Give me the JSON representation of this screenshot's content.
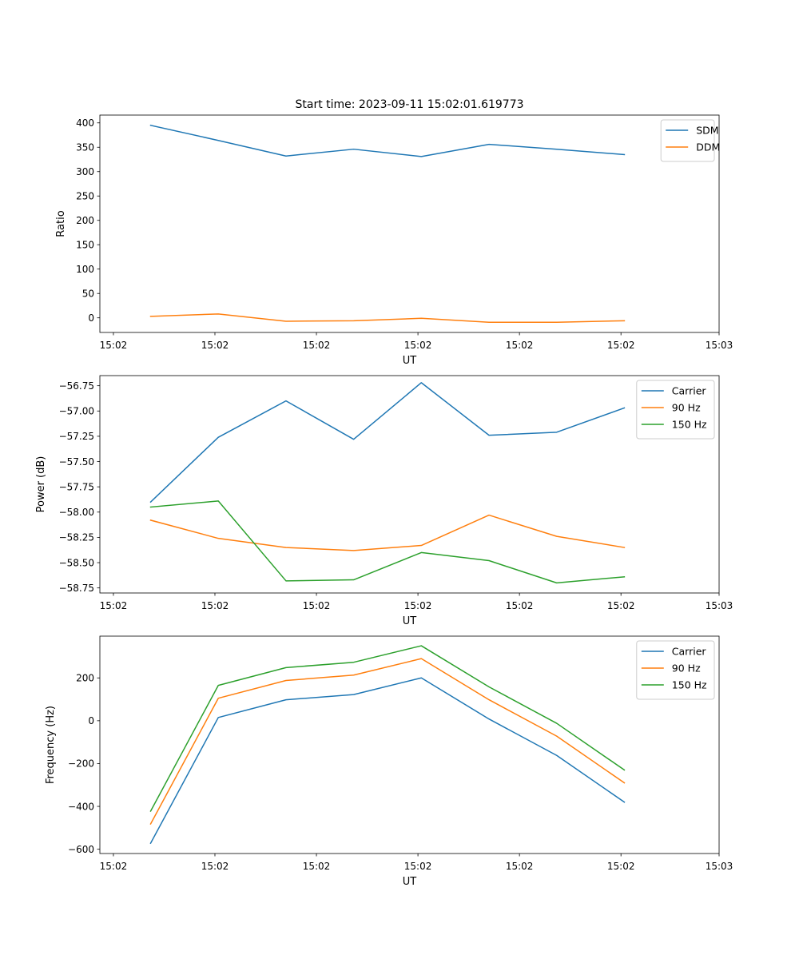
{
  "figure": {
    "title": "Start time: 2023-09-11 15:02:01.619773"
  },
  "colors": {
    "series1": "#1f77b4",
    "series2": "#ff7f0e",
    "series3": "#2ca02c",
    "axes": "#000000",
    "background": "#ffffff"
  },
  "chart_data": [
    {
      "type": "line",
      "title": "Start time: 2023-09-11 15:02:01.619773",
      "xlabel": "UT",
      "ylabel": "Ratio",
      "x": [
        1,
        2,
        3,
        4,
        5,
        6,
        7,
        8
      ],
      "xlim": [
        0.25,
        9.4
      ],
      "xticks": [
        0.45,
        1.95,
        3.45,
        4.95,
        6.45,
        7.95,
        9.4
      ],
      "xtick_labels": [
        "15:02",
        "15:02",
        "15:02",
        "15:02",
        "15:02",
        "15:02",
        "15:03"
      ],
      "ylim": [
        -30,
        416
      ],
      "yticks": [
        0,
        50,
        100,
        150,
        200,
        250,
        300,
        350,
        400
      ],
      "ytick_labels": [
        "0",
        "50",
        "100",
        "150",
        "200",
        "250",
        "300",
        "350",
        "400"
      ],
      "legend_position": "top-right",
      "series": [
        {
          "name": "SDM",
          "color": "#1f77b4",
          "values": [
            395,
            364,
            332,
            346,
            331,
            356,
            346,
            335
          ]
        },
        {
          "name": "DDM",
          "color": "#ff7f0e",
          "values": [
            3,
            8,
            -7,
            -6,
            -1,
            -9,
            -9,
            -6
          ]
        }
      ]
    },
    {
      "type": "line",
      "title": "",
      "xlabel": "UT",
      "ylabel": "Power (dB)",
      "x": [
        1,
        2,
        3,
        4,
        5,
        6,
        7,
        8
      ],
      "xlim": [
        0.25,
        9.4
      ],
      "xticks": [
        0.45,
        1.95,
        3.45,
        4.95,
        6.45,
        7.95,
        9.4
      ],
      "xtick_labels": [
        "15:02",
        "15:02",
        "15:02",
        "15:02",
        "15:02",
        "15:02",
        "15:03"
      ],
      "ylim": [
        -58.8,
        -56.65
      ],
      "yticks": [
        -58.75,
        -58.5,
        -58.25,
        -58.0,
        -57.75,
        -57.5,
        -57.25,
        -57.0,
        -56.75
      ],
      "ytick_labels": [
        "−58.75",
        "−58.50",
        "−58.25",
        "−58.00",
        "−57.75",
        "−57.50",
        "−57.25",
        "−57.00",
        "−56.75"
      ],
      "legend_position": "top-right",
      "series": [
        {
          "name": "Carrier",
          "color": "#1f77b4",
          "values": [
            -57.9,
            -57.26,
            -56.9,
            -57.28,
            -56.72,
            -57.24,
            -57.21,
            -56.97
          ]
        },
        {
          "name": "90 Hz",
          "color": "#ff7f0e",
          "values": [
            -58.08,
            -58.26,
            -58.35,
            -58.38,
            -58.33,
            -58.03,
            -58.24,
            -58.35
          ]
        },
        {
          "name": "150 Hz",
          "color": "#2ca02c",
          "values": [
            -57.95,
            -57.89,
            -58.68,
            -58.67,
            -58.4,
            -58.48,
            -58.7,
            -58.64
          ]
        }
      ]
    },
    {
      "type": "line",
      "title": "",
      "xlabel": "UT",
      "ylabel": "Frequency (Hz)",
      "x": [
        1,
        2,
        3,
        4,
        5,
        6,
        7,
        8
      ],
      "xlim": [
        0.25,
        9.4
      ],
      "xticks": [
        0.45,
        1.95,
        3.45,
        4.95,
        6.45,
        7.95,
        9.4
      ],
      "xtick_labels": [
        "15:02",
        "15:02",
        "15:02",
        "15:02",
        "15:02",
        "15:02",
        "15:03"
      ],
      "ylim": [
        -620,
        395
      ],
      "yticks": [
        -600,
        -400,
        -200,
        0,
        200
      ],
      "ytick_labels": [
        "−600",
        "−400",
        "−200",
        "0",
        "200"
      ],
      "legend_position": "top-right",
      "series": [
        {
          "name": "Carrier",
          "color": "#1f77b4",
          "values": [
            -572,
            15,
            98,
            122,
            200,
            8,
            -162,
            -380
          ]
        },
        {
          "name": "90 Hz",
          "color": "#ff7f0e",
          "values": [
            -482,
            105,
            188,
            213,
            290,
            98,
            -72,
            -290
          ]
        },
        {
          "name": "150 Hz",
          "color": "#2ca02c",
          "values": [
            -422,
            165,
            248,
            273,
            350,
            158,
            -12,
            -230
          ]
        }
      ]
    }
  ]
}
